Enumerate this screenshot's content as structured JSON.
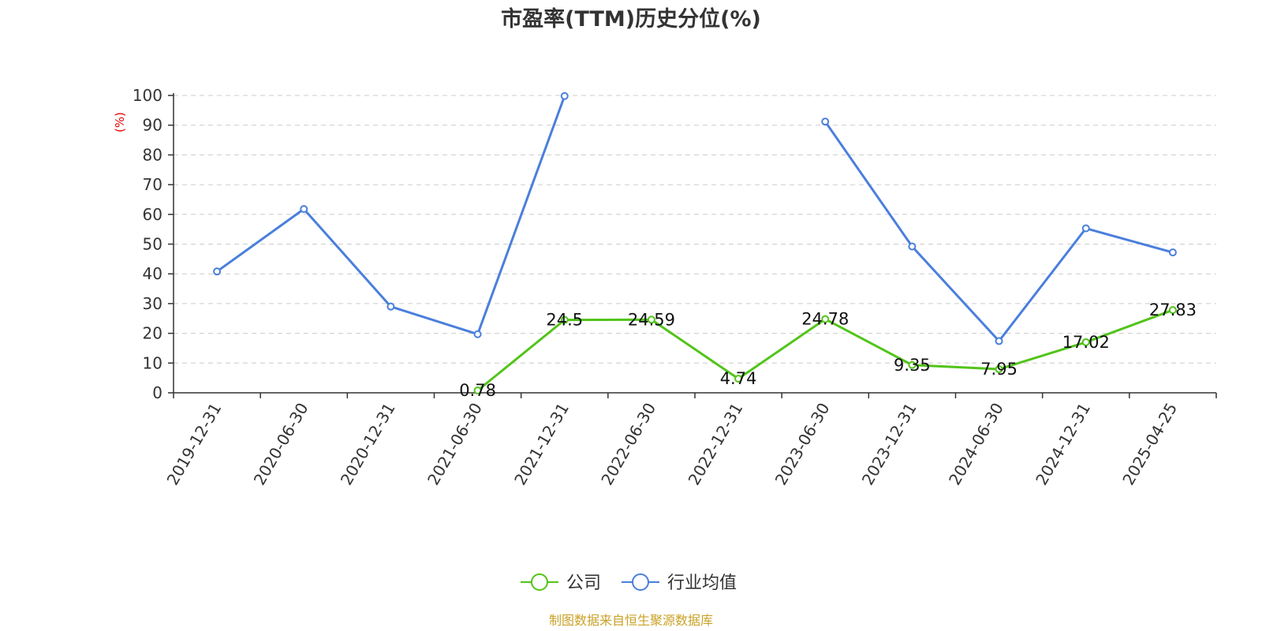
{
  "chart_data": {
    "type": "line",
    "title": "市盈率(TTM)历史分位(%)",
    "ylabel": "(%)",
    "ylim": [
      0,
      100
    ],
    "yticks": [
      0,
      10,
      20,
      30,
      40,
      50,
      60,
      70,
      80,
      90,
      100
    ],
    "categories": [
      "2019-12-31",
      "2020-06-30",
      "2020-12-31",
      "2021-06-30",
      "2021-12-31",
      "2022-06-30",
      "2022-12-31",
      "2023-06-30",
      "2023-12-31",
      "2024-06-30",
      "2024-12-31",
      "2025-04-25"
    ],
    "grid": true,
    "legend_position": "bottom",
    "series": [
      {
        "name": "公司",
        "color": "#52c41a",
        "values": [
          null,
          null,
          null,
          0.78,
          24.5,
          24.59,
          4.74,
          24.78,
          9.35,
          7.95,
          17.02,
          27.83
        ],
        "labels": [
          null,
          null,
          null,
          "0.78",
          "24.5",
          "24.59",
          "4.74",
          "24.78",
          "9.35",
          "7.95",
          "17.02",
          "27.83"
        ]
      },
      {
        "name": "行业均值",
        "color": "#4a7fdc",
        "values": [
          40.8,
          61.8,
          29.0,
          19.7,
          99.8,
          null,
          null,
          91.2,
          49.2,
          17.4,
          55.3,
          47.2
        ]
      }
    ]
  },
  "source": "制图数据来自恒生聚源数据库"
}
